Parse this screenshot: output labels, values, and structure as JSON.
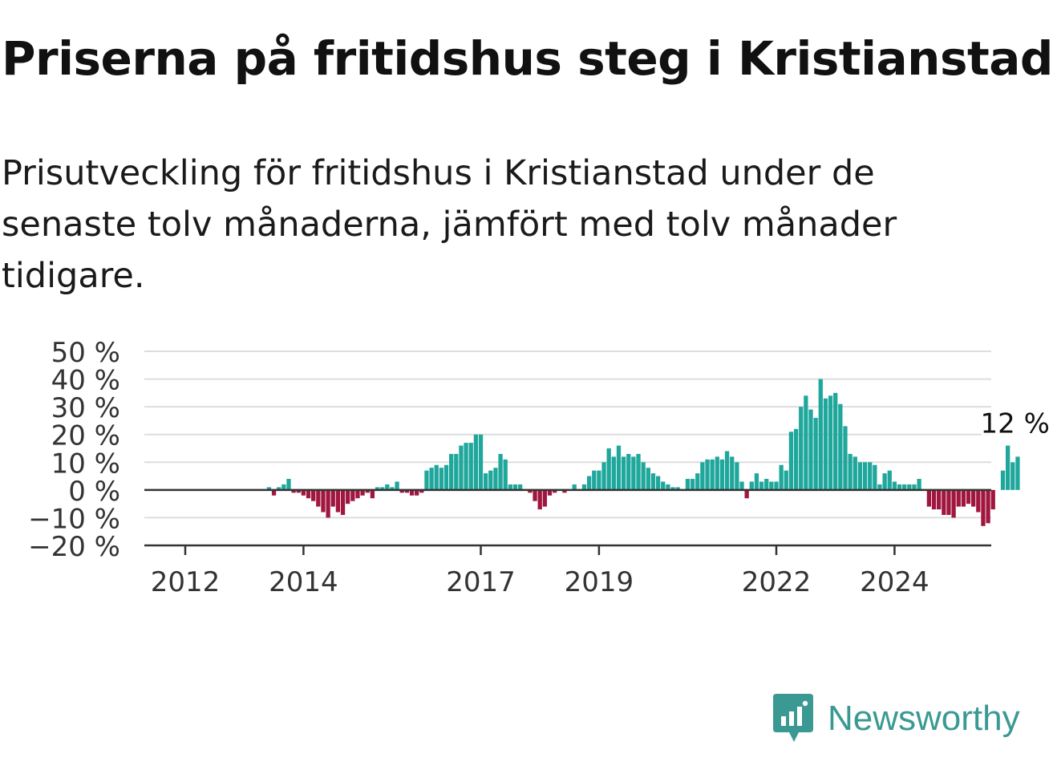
{
  "header": {
    "title": "Priserna på fritidshus steg i Kristianstad",
    "subtitle": "Prisutveckling för fritidshus i Kristianstad under de senaste tolv månaderna, jämfört med tolv månader tidigare."
  },
  "brand": {
    "name": "Newsworthy",
    "icon": "newsworthy-logo-icon"
  },
  "colors": {
    "positive": "#1fa79c",
    "negative": "#a0163f",
    "grid": "#dddddd",
    "axis": "#333333",
    "brand": "#3a9a93"
  },
  "chart_data": {
    "type": "bar",
    "ylim": [
      -20,
      50
    ],
    "yticks": [
      50,
      40,
      30,
      20,
      10,
      0,
      -10,
      -20
    ],
    "ytick_labels": [
      "50 %",
      "40 %",
      "30 %",
      "20 %",
      "10 %",
      "0 %",
      "−10 %",
      "−20 %"
    ],
    "xticks": [
      "2012",
      "2014",
      "2017",
      "2019",
      "2022",
      "2024"
    ],
    "xlabel": "",
    "ylabel": "",
    "grid": true,
    "annotation": "12 %",
    "values": [
      null,
      null,
      null,
      null,
      null,
      null,
      null,
      null,
      null,
      null,
      null,
      null,
      null,
      null,
      null,
      null,
      null,
      1,
      -2,
      1,
      2,
      4,
      -1,
      -1,
      -2,
      -3,
      -4,
      -6,
      -8,
      -10,
      -6,
      -8,
      -9,
      -5,
      -4,
      -3,
      -2,
      -1,
      -3,
      1,
      1,
      2,
      1,
      3,
      -1,
      -1,
      -2,
      -2,
      -1,
      7,
      8,
      9,
      8,
      9,
      13,
      13,
      16,
      17,
      17,
      20,
      20,
      6,
      7,
      8,
      13,
      11,
      2,
      2,
      2,
      0,
      -1,
      -4,
      -7,
      -6,
      -2,
      -1,
      0,
      -1,
      0,
      2,
      0,
      2,
      5,
      7,
      7,
      10,
      15,
      12,
      16,
      12,
      13,
      12,
      13,
      10,
      8,
      6,
      5,
      3,
      2,
      1,
      1,
      0,
      4,
      4,
      6,
      10,
      11,
      11,
      12,
      11,
      14,
      12,
      10,
      3,
      -3,
      3,
      6,
      3,
      4,
      3,
      3,
      9,
      7,
      21,
      22,
      30,
      34,
      29,
      26,
      40,
      33,
      34,
      35,
      31,
      23,
      13,
      12,
      10,
      10,
      10,
      9,
      2,
      6,
      7,
      3,
      2,
      2,
      2,
      2,
      4,
      0,
      -6,
      -7,
      -7,
      -9,
      -9,
      -10,
      -6,
      -6,
      -5,
      -6,
      -8,
      -13,
      -12,
      -7,
      0,
      7,
      16,
      10,
      12
    ]
  }
}
